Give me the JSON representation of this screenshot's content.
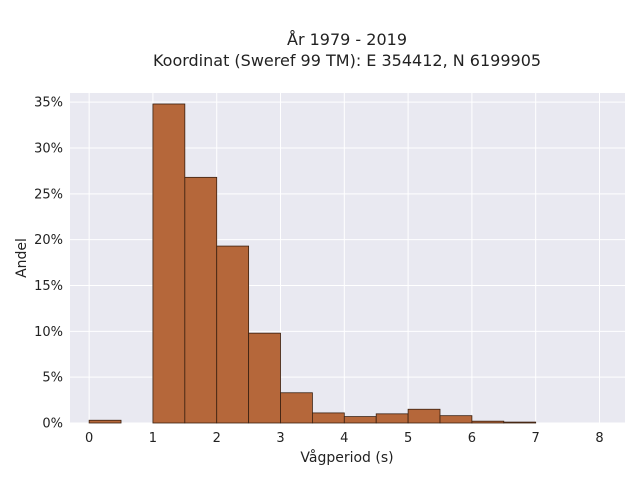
{
  "chart_data": {
    "type": "bar",
    "title_lines": [
      "År 1979 - 2019",
      "Koordinat (Sweref 99 TM): E 354412, N 6199905"
    ],
    "xlabel": "Vågperiod (s)",
    "ylabel": "Andel",
    "xlim": [
      -0.3,
      8.4
    ],
    "ylim": [
      0,
      0.36
    ],
    "x_ticks": [
      0,
      1,
      2,
      3,
      4,
      5,
      6,
      7,
      8
    ],
    "y_ticks": [
      0,
      0.05,
      0.1,
      0.15,
      0.2,
      0.25,
      0.3,
      0.35
    ],
    "y_tick_labels": [
      "0%",
      "5%",
      "10%",
      "15%",
      "20%",
      "25%",
      "30%",
      "35%"
    ],
    "grid": true,
    "bin_width": 0.5,
    "bins": [
      {
        "start": 0.0,
        "end": 0.5,
        "value": 0.003
      },
      {
        "start": 0.5,
        "end": 1.0,
        "value": 0.0
      },
      {
        "start": 1.0,
        "end": 1.5,
        "value": 0.348
      },
      {
        "start": 1.5,
        "end": 2.0,
        "value": 0.268
      },
      {
        "start": 2.0,
        "end": 2.5,
        "value": 0.193
      },
      {
        "start": 2.5,
        "end": 3.0,
        "value": 0.098
      },
      {
        "start": 3.0,
        "end": 3.5,
        "value": 0.033
      },
      {
        "start": 3.5,
        "end": 4.0,
        "value": 0.011
      },
      {
        "start": 4.0,
        "end": 4.5,
        "value": 0.007
      },
      {
        "start": 4.5,
        "end": 5.0,
        "value": 0.01
      },
      {
        "start": 5.0,
        "end": 5.5,
        "value": 0.015
      },
      {
        "start": 5.5,
        "end": 6.0,
        "value": 0.008
      },
      {
        "start": 6.0,
        "end": 6.5,
        "value": 0.002
      },
      {
        "start": 6.5,
        "end": 7.0,
        "value": 0.001
      }
    ],
    "colors": {
      "bar_fill": "#b5673a",
      "bar_stroke": "#3a2010",
      "plot_background": "#e9e9f1",
      "grid": "#ffffff"
    }
  }
}
